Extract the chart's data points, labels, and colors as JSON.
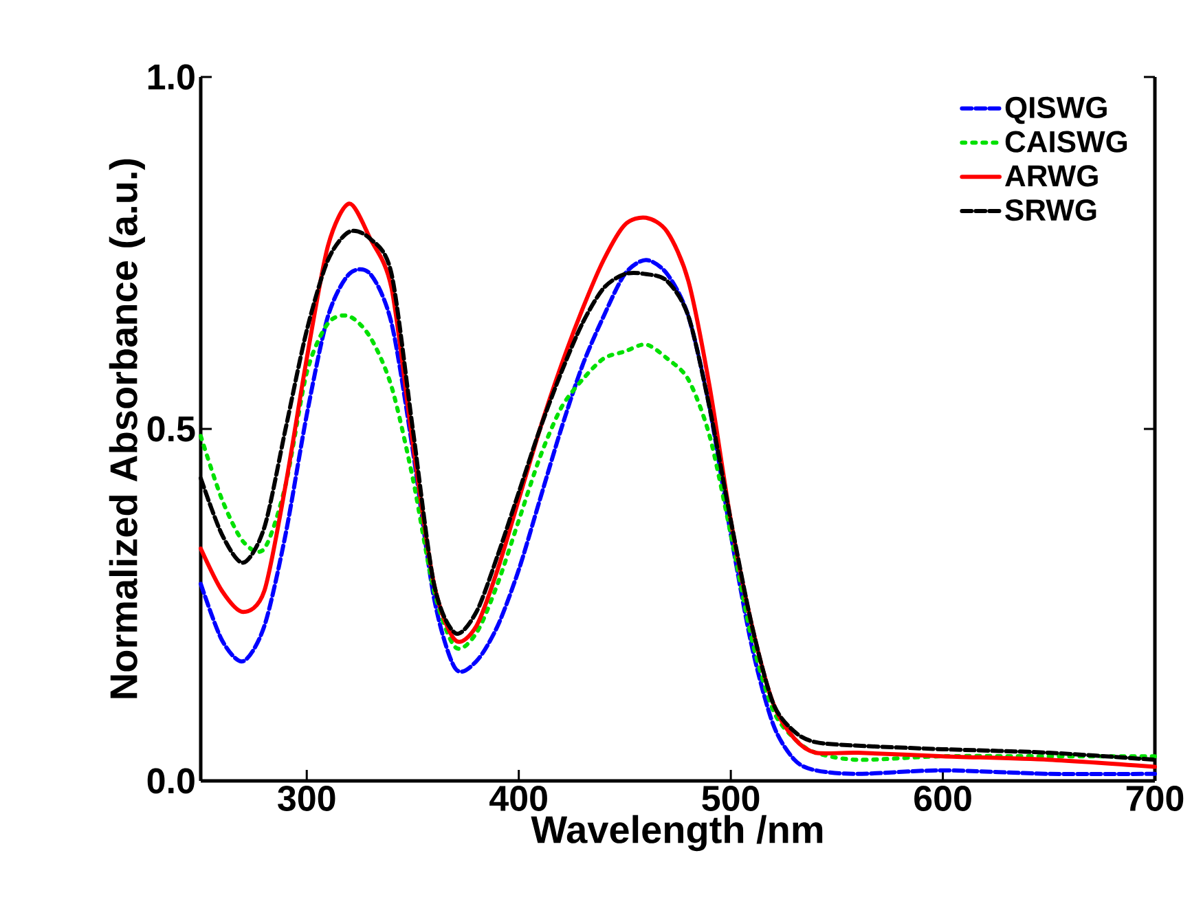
{
  "chart_data": {
    "type": "line",
    "xlabel": "Wavelength /nm",
    "ylabel": "Normalized Absorbance (a.u.)",
    "x": [
      250,
      260,
      270,
      280,
      290,
      300,
      310,
      320,
      330,
      340,
      350,
      360,
      370,
      380,
      390,
      400,
      410,
      420,
      430,
      440,
      450,
      460,
      470,
      480,
      490,
      500,
      510,
      520,
      530,
      540,
      560,
      600,
      650,
      700
    ],
    "series": [
      {
        "name": "QISWG",
        "color": "#0000ff",
        "line_style": "dashed",
        "values": [
          0.28,
          0.2,
          0.17,
          0.22,
          0.35,
          0.52,
          0.66,
          0.72,
          0.72,
          0.65,
          0.47,
          0.26,
          0.16,
          0.17,
          0.22,
          0.3,
          0.4,
          0.5,
          0.59,
          0.66,
          0.72,
          0.74,
          0.72,
          0.66,
          0.53,
          0.35,
          0.19,
          0.08,
          0.03,
          0.015,
          0.01,
          0.015,
          0.01,
          0.01
        ]
      },
      {
        "name": "CAISWG",
        "color": "#00e000",
        "line_style": "dotted",
        "values": [
          0.49,
          0.4,
          0.34,
          0.33,
          0.42,
          0.58,
          0.65,
          0.66,
          0.63,
          0.56,
          0.43,
          0.27,
          0.19,
          0.21,
          0.28,
          0.37,
          0.46,
          0.53,
          0.57,
          0.6,
          0.61,
          0.62,
          0.6,
          0.57,
          0.49,
          0.35,
          0.2,
          0.1,
          0.06,
          0.04,
          0.03,
          0.035,
          0.035,
          0.035
        ]
      },
      {
        "name": "ARWG",
        "color": "#ff0000",
        "line_style": "solid",
        "values": [
          0.33,
          0.27,
          0.24,
          0.27,
          0.42,
          0.6,
          0.76,
          0.82,
          0.77,
          0.7,
          0.48,
          0.28,
          0.2,
          0.22,
          0.3,
          0.4,
          0.5,
          0.59,
          0.67,
          0.74,
          0.79,
          0.8,
          0.78,
          0.71,
          0.56,
          0.37,
          0.22,
          0.11,
          0.06,
          0.04,
          0.04,
          0.035,
          0.03,
          0.02
        ]
      },
      {
        "name": "SRWG",
        "color": "#000000",
        "line_style": "dashed",
        "values": [
          0.43,
          0.35,
          0.31,
          0.36,
          0.5,
          0.64,
          0.74,
          0.78,
          0.77,
          0.72,
          0.5,
          0.28,
          0.21,
          0.24,
          0.32,
          0.41,
          0.5,
          0.58,
          0.65,
          0.7,
          0.72,
          0.72,
          0.71,
          0.66,
          0.53,
          0.37,
          0.22,
          0.11,
          0.07,
          0.055,
          0.05,
          0.045,
          0.04,
          0.03
        ]
      }
    ],
    "xlim": [
      250,
      700
    ],
    "ylim": [
      0,
      1
    ],
    "xticks": [
      300,
      400,
      500,
      600,
      700
    ],
    "yticks": [
      {
        "value": 0,
        "label": "0.0"
      },
      {
        "value": 0.5,
        "label": "0.5"
      },
      {
        "value": 1,
        "label": "1.0"
      }
    ],
    "legend": "top right",
    "grid": false
  }
}
